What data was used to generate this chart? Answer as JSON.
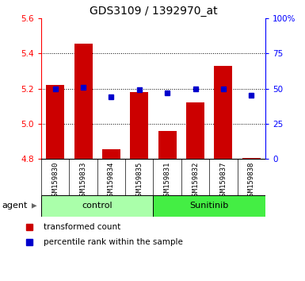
{
  "title": "GDS3109 / 1392970_at",
  "categories": [
    "GSM159830",
    "GSM159833",
    "GSM159834",
    "GSM159835",
    "GSM159831",
    "GSM159832",
    "GSM159837",
    "GSM159838"
  ],
  "bar_values": [
    5.22,
    5.455,
    4.855,
    5.18,
    4.96,
    5.12,
    5.33,
    4.805
  ],
  "percentile_values": [
    50,
    51,
    44,
    49,
    47,
    50,
    50,
    45
  ],
  "bar_bottom": 4.8,
  "ylim_left": [
    4.8,
    5.6
  ],
  "ylim_right": [
    0,
    100
  ],
  "yticks_left": [
    4.8,
    5.0,
    5.2,
    5.4,
    5.6
  ],
  "yticks_right": [
    0,
    25,
    50,
    75,
    100
  ],
  "ytick_labels_right": [
    "0",
    "25",
    "50",
    "75",
    "100%"
  ],
  "bar_color": "#cc0000",
  "dot_color": "#0000cc",
  "grid_color": "#000000",
  "bar_width": 0.65,
  "groups": [
    {
      "label": "control",
      "indices": [
        0,
        1,
        2,
        3
      ],
      "color": "#aaffaa"
    },
    {
      "label": "Sunitinib",
      "indices": [
        4,
        5,
        6,
        7
      ],
      "color": "#44ee44"
    }
  ],
  "legend_items": [
    {
      "label": "transformed count",
      "color": "#cc0000"
    },
    {
      "label": "percentile rank within the sample",
      "color": "#0000cc"
    }
  ],
  "background_color": "#ffffff",
  "tick_area_color": "#c8c8c8",
  "title_fontsize": 10,
  "tick_fontsize": 7.5,
  "legend_fontsize": 7.5
}
